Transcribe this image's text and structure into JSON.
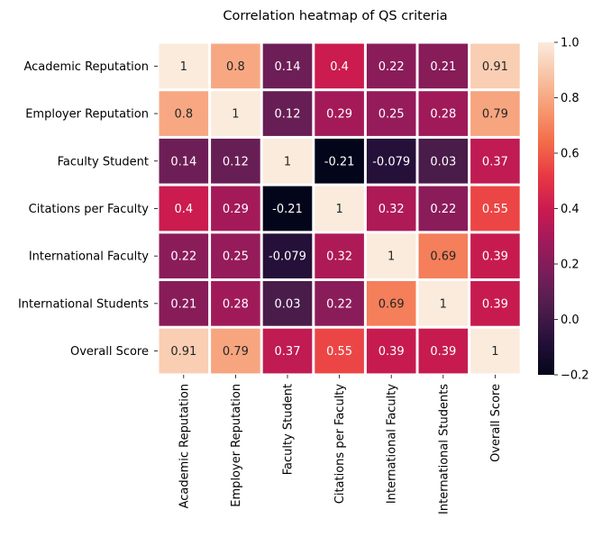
{
  "chart_data": {
    "type": "heatmap",
    "title": "Correlation heatmap of QS criteria",
    "xlabel": "",
    "ylabel": "",
    "rows": [
      "Academic Reputation",
      "Employer Reputation",
      "Faculty Student",
      "Citations per Faculty",
      "International Faculty",
      "International Students",
      "Overall Score"
    ],
    "columns": [
      "Academic Reputation",
      "Employer Reputation",
      "Faculty Student",
      "Citations per Faculty",
      "International Faculty",
      "International Students",
      "Overall Score"
    ],
    "values": [
      [
        1,
        0.8,
        0.14,
        0.4,
        0.22,
        0.21,
        0.91
      ],
      [
        0.8,
        1,
        0.12,
        0.29,
        0.25,
        0.28,
        0.79
      ],
      [
        0.14,
        0.12,
        1,
        -0.21,
        -0.079,
        0.03,
        0.37
      ],
      [
        0.4,
        0.29,
        -0.21,
        1,
        0.32,
        0.22,
        0.55
      ],
      [
        0.22,
        0.25,
        -0.079,
        0.32,
        1,
        0.69,
        0.39
      ],
      [
        0.21,
        0.28,
        0.03,
        0.22,
        0.69,
        1,
        0.39
      ],
      [
        0.91,
        0.79,
        0.37,
        0.55,
        0.39,
        0.39,
        1
      ]
    ],
    "annotations": [
      [
        "1",
        "0.8",
        "0.14",
        "0.4",
        "0.22",
        "0.21",
        "0.91"
      ],
      [
        "0.8",
        "1",
        "0.12",
        "0.29",
        "0.25",
        "0.28",
        "0.79"
      ],
      [
        "0.14",
        "0.12",
        "1",
        "-0.21",
        "-0.079",
        "0.03",
        "0.37"
      ],
      [
        "0.4",
        "0.29",
        "-0.21",
        "1",
        "0.32",
        "0.22",
        "0.55"
      ],
      [
        "0.22",
        "0.25",
        "-0.079",
        "0.32",
        "1",
        "0.69",
        "0.39"
      ],
      [
        "0.21",
        "0.28",
        "0.03",
        "0.22",
        "0.69",
        "1",
        "0.39"
      ],
      [
        "0.91",
        "0.79",
        "0.37",
        "0.55",
        "0.39",
        "0.39",
        "1"
      ]
    ],
    "colorbar": {
      "range": [
        -0.2,
        1.0
      ],
      "ticks": [
        "−0.2",
        "0.0",
        "0.2",
        "0.4",
        "0.6",
        "0.8",
        "1.0"
      ],
      "colormap": "rocket"
    },
    "cell_divider_color": "#ffffff",
    "grid": false
  }
}
